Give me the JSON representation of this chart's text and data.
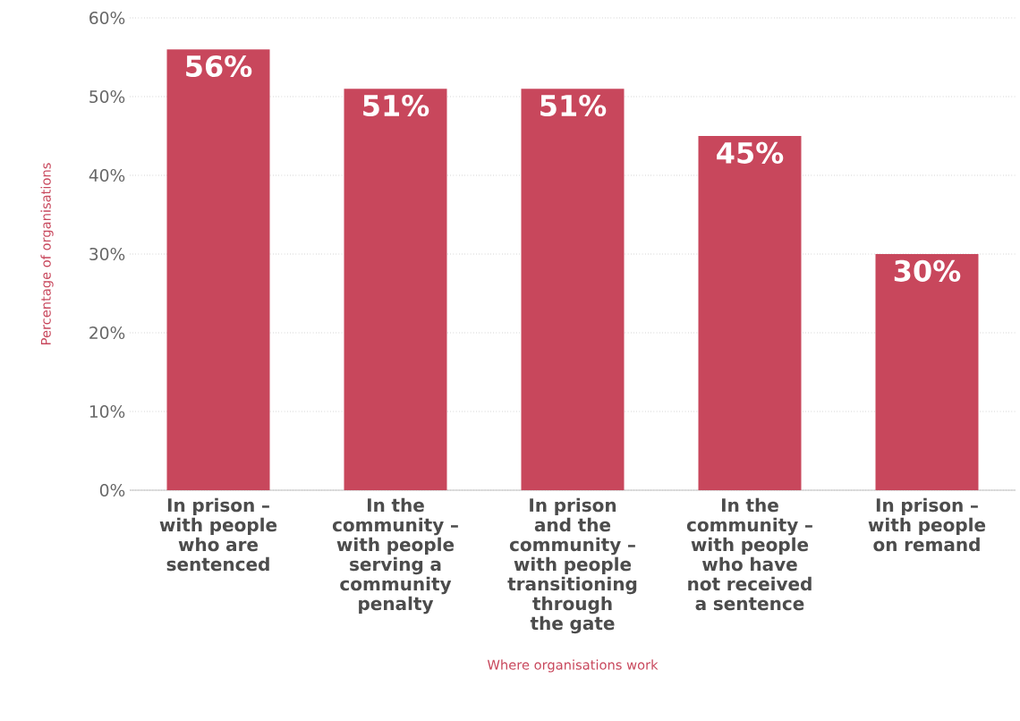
{
  "chart_data": {
    "type": "bar",
    "xlabel": "Where organisations work",
    "ylabel": "Percentage of organisations",
    "categories": [
      "In prison – with people who are sentenced",
      "In the community – with people serving a community penalty",
      "In prison and the community – with people transitioning through the gate",
      "In the community – with people who have not received a sentence",
      "In prison – with people on remand"
    ],
    "values": [
      56,
      51,
      51,
      45,
      30
    ],
    "value_labels": [
      "56%",
      "51%",
      "51%",
      "45%",
      "30%"
    ],
    "color": "#c8475c",
    "ylim": [
      0,
      60
    ],
    "yticks": [
      {
        "value": 0,
        "label": "0%"
      },
      {
        "value": 10,
        "label": "10%"
      },
      {
        "value": 20,
        "label": "20%"
      },
      {
        "value": 30,
        "label": "30%"
      },
      {
        "value": 40,
        "label": "40%"
      },
      {
        "value": 50,
        "label": "50%"
      },
      {
        "value": 60,
        "label": "60%"
      }
    ],
    "grid": "y"
  }
}
